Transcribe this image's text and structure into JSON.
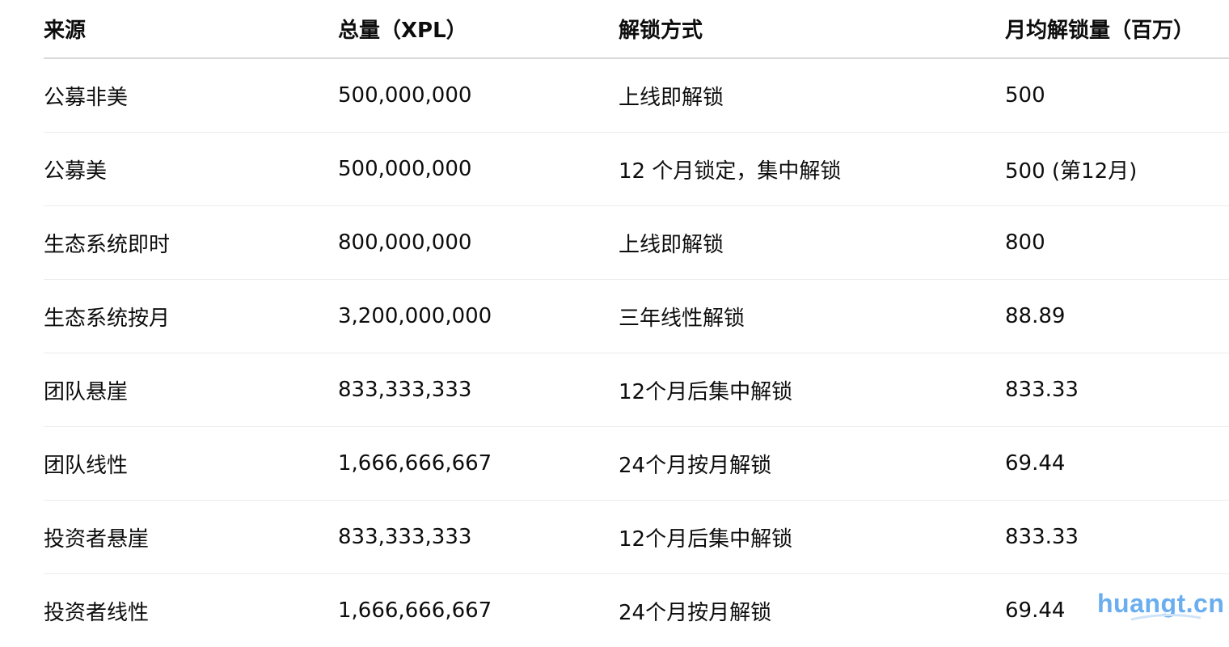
{
  "table": {
    "headers": [
      "来源",
      "总量（XPL）",
      "解锁方式",
      "月均解锁量（百万）"
    ],
    "rows": [
      [
        "公募非美",
        "500,000,000",
        "上线即解锁",
        "500"
      ],
      [
        "公募美",
        "500,000,000",
        "12 个月锁定，集中解锁",
        "500 (第12月)"
      ],
      [
        "生态系统即时",
        "800,000,000",
        "上线即解锁",
        "800"
      ],
      [
        "生态系统按月",
        "3,200,000,000",
        "三年线性解锁",
        "88.89"
      ],
      [
        "团队悬崖",
        "833,333,333",
        "12个月后集中解锁",
        "833.33"
      ],
      [
        "团队线性",
        "1,666,666,667",
        "24个月按月解锁",
        "69.44"
      ],
      [
        "投资者悬崖",
        "833,333,333",
        "12个月后集中解锁",
        "833.33"
      ],
      [
        "投资者线性",
        "1,666,666,667",
        "24个月按月解锁",
        "69.44"
      ]
    ]
  },
  "watermark": {
    "text": "huangt.cn",
    "color": "#6aaef0"
  }
}
